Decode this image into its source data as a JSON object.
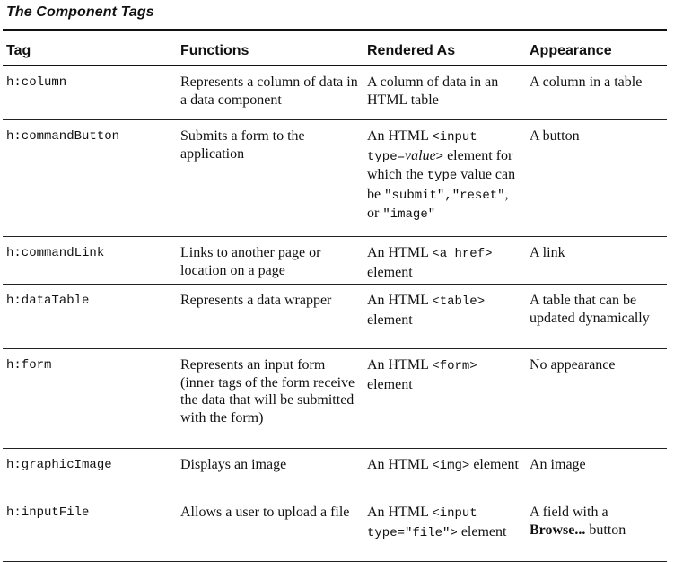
{
  "title": "The Component Tags",
  "headers": {
    "tag": "Tag",
    "functions": "Functions",
    "rendered_as": "Rendered As",
    "appearance": "Appearance"
  },
  "rows": [
    {
      "tag": "h:column",
      "functions": "Represents a column of data in a data component",
      "rendered": {
        "p1": "A column of data in an HTML table"
      },
      "appearance": {
        "p1": "A column in a table"
      }
    },
    {
      "tag": "h:commandButton",
      "functions": "Submits a form to the application",
      "rendered": {
        "p1": "An HTML ",
        "c1": "<input type=",
        "i1": "value",
        "c2": ">",
        "p2": " element for which the ",
        "c3": "type",
        "p3": " value can be ",
        "c4": "\"submit\",\"reset\"",
        "p4": ", or ",
        "c5": "\"image\""
      },
      "appearance": {
        "p1": "A button"
      }
    },
    {
      "tag": "h:commandLink",
      "functions": "Links to another page or location on a page",
      "rendered": {
        "p1": "An HTML ",
        "c1": "<a href>",
        "p2": " element"
      },
      "appearance": {
        "p1": "A link"
      }
    },
    {
      "tag": "h:dataTable",
      "functions": "Represents a data wrapper",
      "rendered": {
        "p1": "An HTML ",
        "c1": "<table>",
        "p2": " element"
      },
      "appearance": {
        "p1": "A table that can be updated dynamically"
      }
    },
    {
      "tag": "h:form",
      "functions": "Represents an input form (inner tags of the form receive the data that will be submitted with the form)",
      "rendered": {
        "p1": "An HTML ",
        "c1": "<form>",
        "p2": " element"
      },
      "appearance": {
        "p1": "No appearance"
      }
    },
    {
      "tag": "h:graphicImage",
      "functions": "Displays an image",
      "rendered": {
        "p1": "An HTML ",
        "c1": "<img>",
        "p2": " element"
      },
      "appearance": {
        "p1": "An image"
      }
    },
    {
      "tag": "h:inputFile",
      "functions": "Allows a user to upload a file",
      "rendered": {
        "p1": "An HTML ",
        "c1": "<input type=\"file\">",
        "p2": " element"
      },
      "appearance": {
        "p1": "A field with a ",
        "b1": "Browse...",
        "p2": " button"
      }
    }
  ]
}
